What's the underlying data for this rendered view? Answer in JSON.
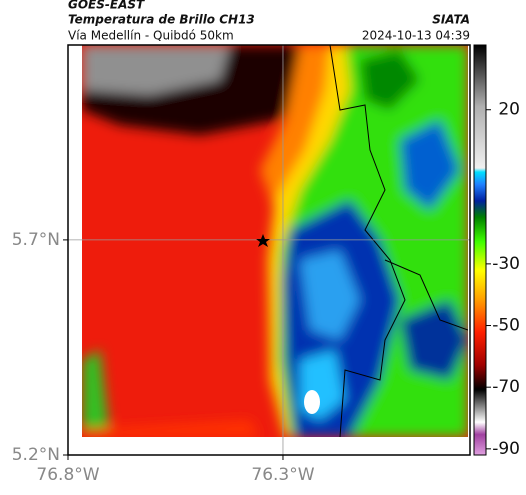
{
  "header": {
    "source": "GOES-EAST",
    "title": "Temperatura de Brillo CH13",
    "subtitle": "Vía Medellín - Quibdó 50km",
    "brand": "SIATA",
    "timestamp": "2024-10-13 04:39"
  },
  "map": {
    "xlim": [
      -76.8,
      -75.865
    ],
    "ylim": [
      5.2,
      6.153
    ],
    "xticks": [
      {
        "value": -76.8,
        "label": "76.8°W"
      },
      {
        "value": -76.3,
        "label": "76.3°W"
      }
    ],
    "yticks": [
      {
        "value": 5.2,
        "label": "5.2°N"
      },
      {
        "value": 5.7,
        "label": "5.7°N"
      }
    ]
  },
  "colorbar": {
    "lim": [
      -92,
      41
    ],
    "ticks": [
      20,
      -30,
      -50,
      -70,
      -90
    ]
  }
}
